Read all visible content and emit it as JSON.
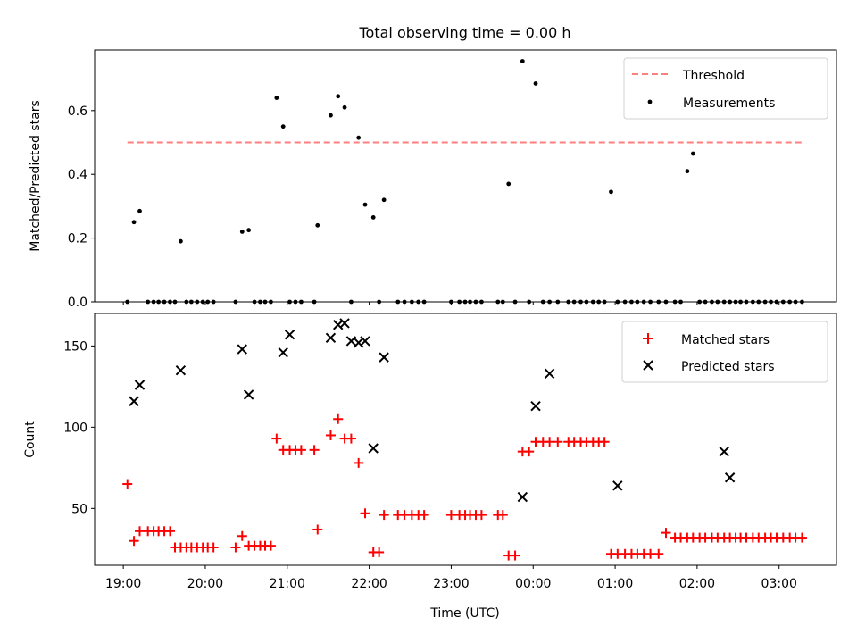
{
  "figure": {
    "title": "Total observing time = 0.00 h",
    "xlabel": "Time (UTC)",
    "x_ticks": [
      "19:00",
      "20:00",
      "21:00",
      "22:00",
      "23:00",
      "00:00",
      "01:00",
      "02:00",
      "03:00"
    ]
  },
  "chart_data": [
    {
      "type": "scatter",
      "panel": "top",
      "ylabel": "Matched/Predicted stars",
      "xlim": [
        -0.35,
        8.7
      ],
      "ylim": [
        0,
        0.79
      ],
      "y_ticks": [
        "0.0",
        "0.2",
        "0.4",
        "0.6"
      ],
      "legend_placement": "top-right",
      "threshold": {
        "name": "Threshold",
        "value": 0.5,
        "x_range": [
          0.05,
          8.3
        ],
        "color": "#ff7f7f"
      },
      "series": [
        {
          "name": "Measurements",
          "color": "#000000",
          "x": [
            0.05,
            0.13,
            0.2,
            0.3,
            0.37,
            0.43,
            0.5,
            0.57,
            0.63,
            0.7,
            0.77,
            0.83,
            0.9,
            0.97,
            1.03,
            1.1,
            1.37,
            1.45,
            1.53,
            1.6,
            1.67,
            1.73,
            1.8,
            1.87,
            1.95,
            2.03,
            2.1,
            2.17,
            2.33,
            2.37,
            2.53,
            2.62,
            2.7,
            2.78,
            2.87,
            2.95,
            3.05,
            3.12,
            3.18,
            3.35,
            3.43,
            3.52,
            3.6,
            3.67,
            4.0,
            4.1,
            4.17,
            4.23,
            4.3,
            4.37,
            4.57,
            4.63,
            4.7,
            4.78,
            4.87,
            4.95,
            5.03,
            5.12,
            5.2,
            5.3,
            5.43,
            5.5,
            5.58,
            5.65,
            5.73,
            5.8,
            5.87,
            5.95,
            6.03,
            6.12,
            6.2,
            6.27,
            6.35,
            6.43,
            6.53,
            6.62,
            6.73,
            6.8,
            6.88,
            6.95,
            7.03,
            7.1,
            7.18,
            7.25,
            7.33,
            7.4,
            7.47,
            7.53,
            7.6,
            7.68,
            7.75,
            7.83,
            7.9,
            7.97,
            8.05,
            8.13,
            8.2,
            8.28
          ],
          "y": [
            0,
            0.25,
            0.285,
            0,
            0,
            0,
            0,
            0,
            0,
            0.19,
            0,
            0,
            0,
            0,
            0,
            0,
            0,
            0.22,
            0.225,
            0,
            0,
            0,
            0,
            0.64,
            0.55,
            0,
            0,
            0,
            0,
            0.24,
            0.585,
            0.645,
            0.61,
            0,
            0.515,
            0.305,
            0.265,
            0,
            0.32,
            0,
            0,
            0,
            0,
            0,
            0,
            0,
            0,
            0,
            0,
            0,
            0,
            0,
            0.37,
            0,
            0.755,
            0,
            0.685,
            0,
            0,
            0,
            0,
            0,
            0,
            0,
            0,
            0,
            0,
            0.345,
            0,
            0,
            0,
            0,
            0,
            0,
            0,
            0,
            0,
            0,
            0.41,
            0.465,
            0,
            0,
            0,
            0,
            0,
            0,
            0,
            0,
            0,
            0,
            0,
            0,
            0,
            0,
            0,
            0,
            0,
            0
          ]
        }
      ]
    },
    {
      "type": "scatter",
      "panel": "bottom",
      "ylabel": "Count",
      "xlim": [
        -0.35,
        8.7
      ],
      "ylim": [
        15,
        170
      ],
      "y_ticks": [
        "50",
        "100",
        "150"
      ],
      "legend_placement": "top-right",
      "series": [
        {
          "name": "Matched stars",
          "color": "#ff0000",
          "x": [
            0.05,
            0.13,
            0.2,
            0.3,
            0.37,
            0.43,
            0.5,
            0.57,
            0.63,
            0.7,
            0.77,
            0.83,
            0.9,
            0.97,
            1.03,
            1.1,
            1.37,
            1.45,
            1.53,
            1.6,
            1.67,
            1.73,
            1.8,
            1.87,
            1.95,
            2.03,
            2.1,
            2.17,
            2.33,
            2.37,
            2.53,
            2.62,
            2.7,
            2.78,
            2.87,
            2.95,
            3.05,
            3.12,
            3.18,
            3.35,
            3.43,
            3.52,
            3.6,
            3.67,
            4.0,
            4.1,
            4.17,
            4.23,
            4.3,
            4.37,
            4.57,
            4.63,
            4.7,
            4.78,
            4.87,
            4.95,
            5.03,
            5.12,
            5.2,
            5.3,
            5.43,
            5.5,
            5.58,
            5.65,
            5.73,
            5.8,
            5.87,
            5.95,
            6.03,
            6.12,
            6.2,
            6.27,
            6.35,
            6.43,
            6.53,
            6.62,
            6.73,
            6.8,
            6.88,
            6.95,
            7.03,
            7.1,
            7.18,
            7.25,
            7.33,
            7.4,
            7.47,
            7.53,
            7.6,
            7.68,
            7.75,
            7.83,
            7.9,
            7.97,
            8.05,
            8.13,
            8.2,
            8.28
          ],
          "y": [
            65,
            30,
            36,
            36,
            36,
            36,
            36,
            36,
            26,
            26,
            26,
            26,
            26,
            26,
            26,
            26,
            26,
            33,
            27,
            27,
            27,
            27,
            27,
            93,
            86,
            86,
            86,
            86,
            86,
            37,
            95,
            105,
            93,
            93,
            78,
            47,
            23,
            23,
            46,
            46,
            46,
            46,
            46,
            46,
            46,
            46,
            46,
            46,
            46,
            46,
            46,
            46,
            21,
            21,
            85,
            85,
            91,
            91,
            91,
            91,
            91,
            91,
            91,
            91,
            91,
            91,
            91,
            22,
            22,
            22,
            22,
            22,
            22,
            22,
            22,
            35,
            32,
            32,
            32,
            32,
            32,
            32,
            32,
            32,
            32,
            32,
            32,
            32,
            32,
            32,
            32,
            32,
            32,
            32,
            32,
            32,
            32,
            32
          ]
        },
        {
          "name": "Predicted stars",
          "color": "#000000",
          "x": [
            0.13,
            0.2,
            0.7,
            1.45,
            1.53,
            1.95,
            2.03,
            2.53,
            2.62,
            2.7,
            2.78,
            2.87,
            2.95,
            3.05,
            3.18,
            4.87,
            5.03,
            5.2,
            6.03,
            7.33,
            7.4
          ],
          "y": [
            116,
            126,
            135,
            148,
            120,
            146,
            157,
            155,
            163,
            164,
            153,
            152,
            153,
            87,
            143,
            57,
            113,
            133,
            64,
            85,
            69
          ]
        }
      ]
    }
  ]
}
